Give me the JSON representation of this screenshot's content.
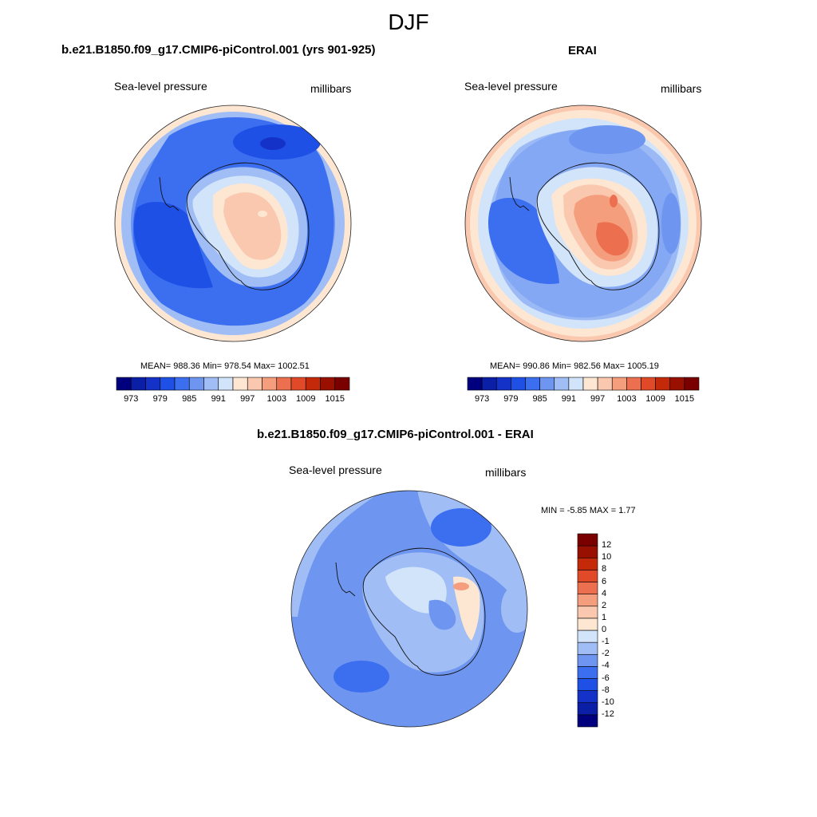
{
  "page_title": "DJF",
  "panels": {
    "model": {
      "title": "b.e21.B1850.f09_g17.CMIP6-piControl.001 (yrs 901-925)",
      "left_label": "Sea-level pressure",
      "right_label": "millibars",
      "stats": "MEAN= 988.36  Min= 978.54  Max= 1002.51"
    },
    "obs": {
      "title": "ERAI",
      "left_label": "Sea-level pressure",
      "right_label": "millibars",
      "stats": "MEAN= 990.86  Min= 982.56  Max= 1005.19"
    },
    "diff": {
      "title": "b.e21.B1850.f09_g17.CMIP6-piControl.001 - ERAI",
      "left_label": "Sea-level pressure",
      "right_label": "millibars",
      "stats": "MIN =  -5.85 MAX =   1.77"
    }
  },
  "colorbar_main": {
    "colors": [
      "#00007f",
      "#0a1ea6",
      "#1432c8",
      "#1e50e6",
      "#3c6ef0",
      "#6e96f0",
      "#a0bef5",
      "#d2e4fa",
      "#fde6d2",
      "#fac8ae",
      "#f59e7e",
      "#ec7050",
      "#e04a28",
      "#c42a0a",
      "#9a1000",
      "#7a0000"
    ],
    "tick_labels": [
      "973",
      "979",
      "985",
      "991",
      "997",
      "1003",
      "1009",
      "1015"
    ]
  },
  "colorbar_diff": {
    "colors": [
      "#00007f",
      "#0a1ea6",
      "#1432c8",
      "#1e50e6",
      "#3c6ef0",
      "#6e96f0",
      "#a0bef5",
      "#d2e4fa",
      "#fde6d2",
      "#fac8ae",
      "#f59e7e",
      "#ec7050",
      "#e04a28",
      "#c42a0a",
      "#9a1000",
      "#7a0000"
    ],
    "tick_labels": [
      "12",
      "10",
      "8",
      "6",
      "4",
      "2",
      "1",
      "0",
      "-1",
      "-2",
      "-4",
      "-6",
      "-8",
      "-10",
      "-12"
    ]
  }
}
